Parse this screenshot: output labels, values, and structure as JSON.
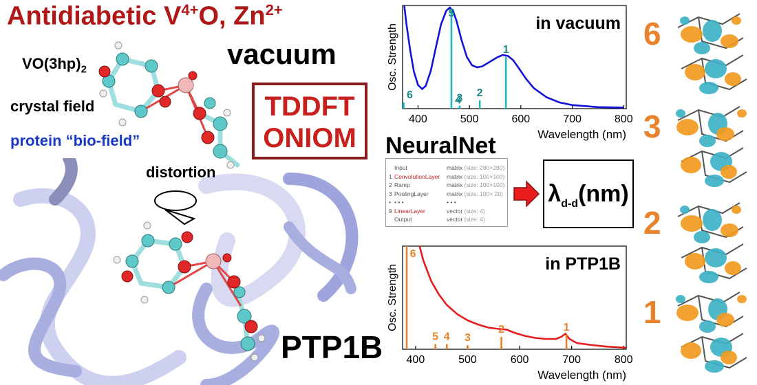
{
  "title": {
    "main": "Antidiabetic V",
    "sup1": "4+",
    "mid": "O, Zn",
    "sup2": "2+"
  },
  "vacuum_label": "vacuum",
  "molecule_name": {
    "prefix": "VO(3hp)",
    "sub": "2"
  },
  "crystal_field": "crystal field",
  "bio_field": "protein “bio-field”",
  "methods": [
    "TDDFT",
    "ONIOM"
  ],
  "distortion_label": "distortion",
  "protein_label": "PTP1B",
  "neuralnet": {
    "title": "NeuralNet",
    "layers": [
      {
        "idx": "",
        "name": "Input",
        "type": "matrix",
        "size": "(size: 280×280)",
        "highlight": false
      },
      {
        "idx": "1",
        "name": "ConvolutionLayer",
        "type": "matrix",
        "size": "(size: 100×100)",
        "highlight": true
      },
      {
        "idx": "2",
        "name": "Ramp",
        "type": "matrix",
        "size": "(size: 100×100)",
        "highlight": false
      },
      {
        "idx": "3",
        "name": "PoolingLayer",
        "type": "matrix",
        "size": "(size: 100× 20)",
        "highlight": false
      },
      {
        "idx": "•",
        "name": "• • •",
        "type": "• • •",
        "size": "",
        "highlight": false
      },
      {
        "idx": "9",
        "name": "LinearLayer",
        "type": "vector",
        "size": "(size: 4)",
        "highlight": true
      },
      {
        "idx": "",
        "name": "Output",
        "type": "vector",
        "size": "(size: 4)",
        "highlight": false
      }
    ],
    "output": {
      "symbol": "λ",
      "sub": "d-d",
      "unit": "(nm)"
    }
  },
  "chart_data": [
    {
      "type": "line",
      "title": "in vacuum",
      "xlabel": "Wavelength (nm)",
      "ylabel": "Osc. Strength",
      "xlim": [
        370,
        805
      ],
      "ylim": [
        0,
        1
      ],
      "xticks": [
        400,
        500,
        600,
        700,
        800
      ],
      "curve_color": "#1212d8",
      "stick_color": "#1fb8b8",
      "label_color": "#1a8a82",
      "curve": {
        "x": [
          372,
          378,
          385,
          392,
          400,
          408,
          415,
          425,
          435,
          445,
          455,
          462,
          468,
          475,
          485,
          495,
          505,
          515,
          525,
          535,
          545,
          555,
          565,
          575,
          585,
          595,
          610,
          625,
          650,
          675,
          700,
          750,
          800
        ],
        "y": [
          1.05,
          0.8,
          0.56,
          0.36,
          0.23,
          0.19,
          0.22,
          0.37,
          0.6,
          0.82,
          0.95,
          0.98,
          0.95,
          0.85,
          0.66,
          0.5,
          0.42,
          0.4,
          0.41,
          0.44,
          0.47,
          0.5,
          0.52,
          0.51,
          0.47,
          0.4,
          0.29,
          0.2,
          0.11,
          0.06,
          0.035,
          0.015,
          0.01
        ]
      },
      "sticks": [
        {
          "label": "6",
          "x": 372,
          "y": 0.06
        },
        {
          "label": "5",
          "x": 465,
          "y": 0.97
        },
        {
          "label": "4",
          "x": 478,
          "y": 0.01
        },
        {
          "label": "3",
          "x": 481,
          "y": 0.03
        },
        {
          "label": "2",
          "x": 520,
          "y": 0.08
        },
        {
          "label": "1",
          "x": 571,
          "y": 0.5
        }
      ]
    },
    {
      "type": "line",
      "title": "in PTP1B",
      "xlabel": "Wavelength (nm)",
      "ylabel": "Osc. Strength",
      "xlim": [
        375,
        805
      ],
      "ylim": [
        0,
        1
      ],
      "xticks": [
        400,
        500,
        600,
        700,
        800
      ],
      "curve_color": "#e81c1c",
      "stick_color": "#e8822c",
      "label_color": "#e8822c",
      "curve": {
        "x": [
          405,
          415,
          430,
          445,
          460,
          480,
          500,
          520,
          540,
          555,
          565,
          575,
          590,
          610,
          630,
          650,
          670,
          680,
          688,
          696,
          710,
          740,
          770,
          805
        ],
        "y": [
          1.05,
          0.86,
          0.66,
          0.53,
          0.43,
          0.34,
          0.28,
          0.24,
          0.21,
          0.2,
          0.195,
          0.19,
          0.16,
          0.13,
          0.11,
          0.1,
          0.1,
          0.12,
          0.15,
          0.1,
          0.06,
          0.04,
          0.025,
          0.015
        ]
      },
      "sticks": [
        {
          "label": "6",
          "x": 383,
          "y": 1.0
        },
        {
          "label": "5",
          "x": 438,
          "y": 0.05
        },
        {
          "label": "4",
          "x": 460,
          "y": 0.05
        },
        {
          "label": "3",
          "x": 500,
          "y": 0.04
        },
        {
          "label": "2",
          "x": 565,
          "y": 0.12
        },
        {
          "label": "1",
          "x": 690,
          "y": 0.14
        }
      ]
    }
  ],
  "mo_labels": [
    "6",
    "3",
    "2",
    "1"
  ],
  "colors": {
    "title": "#b01818",
    "bio_field": "#1a38c8",
    "method_box": "#8a1c1c",
    "method_text": "#c8201c",
    "mo_label": "#e8822c",
    "arrow": "#e81c1c"
  }
}
